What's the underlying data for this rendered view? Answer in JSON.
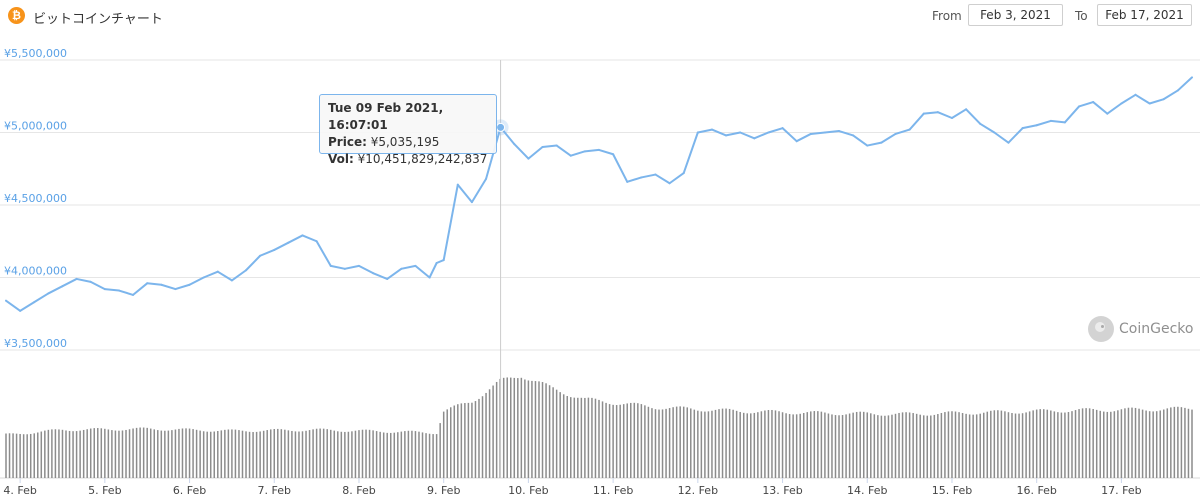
{
  "header": {
    "coin_icon_glyph": "₿",
    "coin_icon": "bitcoin-icon",
    "title": "ビットコインチャート",
    "from_label": "From",
    "from_value": "Feb 3, 2021",
    "to_label": "To",
    "to_value": "Feb 17, 2021"
  },
  "tooltip": {
    "datetime": "Tue 09 Feb 2021, 16:07:01",
    "price_label": "Price:",
    "price_value": "¥5,035,195",
    "vol_label": "Vol:",
    "vol_value": "¥10,451,829,242,837"
  },
  "watermark": {
    "icon": "coingecko-logo-icon",
    "text": "CoinGecko"
  },
  "colors": {
    "line": "#7cb5ec",
    "volume": "#8c8c8c",
    "grid": "#e6e6e6",
    "axis_label": "#5aa1e6",
    "crosshair": "#cccccc"
  },
  "chart_data": {
    "type": "line",
    "x_unit": "date",
    "xlim": [
      "2021-02-03T20:00",
      "2021-02-17T20:00"
    ],
    "ylim": [
      3500000,
      5500000
    ],
    "ytick_values": [
      3500000,
      4000000,
      4500000,
      5000000,
      5500000
    ],
    "ytick_labels": [
      "¥3,500,000",
      "¥4,000,000",
      "¥4,500,000",
      "¥5,000,000",
      "¥5,500,000"
    ],
    "xtick_values": [
      "2021-02-04",
      "2021-02-05",
      "2021-02-06",
      "2021-02-07",
      "2021-02-08",
      "2021-02-09",
      "2021-02-10",
      "2021-02-11",
      "2021-02-12",
      "2021-02-13",
      "2021-02-14",
      "2021-02-15",
      "2021-02-16",
      "2021-02-17"
    ],
    "xtick_labels": [
      "4. Feb",
      "5. Feb",
      "6. Feb",
      "7. Feb",
      "8. Feb",
      "9. Feb",
      "10. Feb",
      "11. Feb",
      "12. Feb",
      "13. Feb",
      "14. Feb",
      "15. Feb",
      "16. Feb",
      "17. Feb"
    ],
    "highlight": {
      "x": "2021-02-09T16:07",
      "y": 5035195
    },
    "price": {
      "x": [
        "2021-02-03T20:00",
        "2021-02-04T00:00",
        "2021-02-04T04:00",
        "2021-02-04T08:00",
        "2021-02-04T12:00",
        "2021-02-04T16:00",
        "2021-02-04T20:00",
        "2021-02-05T00:00",
        "2021-02-05T04:00",
        "2021-02-05T08:00",
        "2021-02-05T12:00",
        "2021-02-05T16:00",
        "2021-02-05T20:00",
        "2021-02-06T00:00",
        "2021-02-06T04:00",
        "2021-02-06T08:00",
        "2021-02-06T12:00",
        "2021-02-06T16:00",
        "2021-02-06T20:00",
        "2021-02-07T00:00",
        "2021-02-07T04:00",
        "2021-02-07T08:00",
        "2021-02-07T12:00",
        "2021-02-07T16:00",
        "2021-02-07T20:00",
        "2021-02-08T00:00",
        "2021-02-08T04:00",
        "2021-02-08T08:00",
        "2021-02-08T12:00",
        "2021-02-08T16:00",
        "2021-02-08T20:00",
        "2021-02-08T22:00",
        "2021-02-09T00:00",
        "2021-02-09T04:00",
        "2021-02-09T08:00",
        "2021-02-09T12:00",
        "2021-02-09T16:07",
        "2021-02-09T20:00",
        "2021-02-10T00:00",
        "2021-02-10T04:00",
        "2021-02-10T08:00",
        "2021-02-10T12:00",
        "2021-02-10T16:00",
        "2021-02-10T20:00",
        "2021-02-11T00:00",
        "2021-02-11T04:00",
        "2021-02-11T08:00",
        "2021-02-11T12:00",
        "2021-02-11T16:00",
        "2021-02-11T20:00",
        "2021-02-12T00:00",
        "2021-02-12T04:00",
        "2021-02-12T08:00",
        "2021-02-12T12:00",
        "2021-02-12T16:00",
        "2021-02-12T20:00",
        "2021-02-13T00:00",
        "2021-02-13T04:00",
        "2021-02-13T08:00",
        "2021-02-13T12:00",
        "2021-02-13T16:00",
        "2021-02-13T20:00",
        "2021-02-14T00:00",
        "2021-02-14T04:00",
        "2021-02-14T08:00",
        "2021-02-14T12:00",
        "2021-02-14T16:00",
        "2021-02-14T20:00",
        "2021-02-15T00:00",
        "2021-02-15T04:00",
        "2021-02-15T08:00",
        "2021-02-15T12:00",
        "2021-02-15T16:00",
        "2021-02-15T20:00",
        "2021-02-16T00:00",
        "2021-02-16T04:00",
        "2021-02-16T08:00",
        "2021-02-16T12:00",
        "2021-02-16T16:00",
        "2021-02-16T20:00",
        "2021-02-17T00:00",
        "2021-02-17T04:00",
        "2021-02-17T08:00",
        "2021-02-17T12:00",
        "2021-02-17T16:00",
        "2021-02-17T20:00"
      ],
      "y": [
        3840000,
        3770000,
        3830000,
        3890000,
        3940000,
        3990000,
        3970000,
        3920000,
        3910000,
        3880000,
        3960000,
        3950000,
        3920000,
        3950000,
        4000000,
        4040000,
        3980000,
        4050000,
        4150000,
        4190000,
        4240000,
        4290000,
        4250000,
        4080000,
        4060000,
        4080000,
        4030000,
        3990000,
        4060000,
        4080000,
        4000000,
        4100000,
        4120000,
        4640000,
        4520000,
        4680000,
        5035195,
        4920000,
        4820000,
        4900000,
        4910000,
        4840000,
        4870000,
        4880000,
        4850000,
        4660000,
        4690000,
        4710000,
        4650000,
        4720000,
        5000000,
        5020000,
        4980000,
        5000000,
        4960000,
        5000000,
        5030000,
        4940000,
        4990000,
        5000000,
        5010000,
        4980000,
        4910000,
        4930000,
        4990000,
        5020000,
        5130000,
        5140000,
        5100000,
        5160000,
        5060000,
        5000000,
        4930000,
        5030000,
        5050000,
        5080000,
        5070000,
        5180000,
        5210000,
        5130000,
        5200000,
        5260000,
        5200000,
        5230000,
        5290000,
        5380000
      ]
    },
    "volume": {
      "y_unit": "JPY",
      "x": [
        "2021-02-03T20:00",
        "2021-02-04T12:00",
        "2021-02-05T12:00",
        "2021-02-06T12:00",
        "2021-02-07T12:00",
        "2021-02-08T12:00",
        "2021-02-08T22:00",
        "2021-02-09T00:00",
        "2021-02-09T08:00",
        "2021-02-09T16:00",
        "2021-02-09T22:00",
        "2021-02-10T06:00",
        "2021-02-10T16:00",
        "2021-02-11T12:00",
        "2021-02-12T12:00",
        "2021-02-13T12:00",
        "2021-02-14T12:00",
        "2021-02-15T12:00",
        "2021-02-16T12:00",
        "2021-02-17T12:00",
        "2021-02-17T20:00"
      ],
      "y": [
        4400000000000,
        4900000000000,
        5000000000000,
        4800000000000,
        4900000000000,
        4700000000000,
        4600000000000,
        6800000000000,
        7800000000000,
        9800000000000,
        10500000000000,
        9200000000000,
        8000000000000,
        7200000000000,
        6800000000000,
        6600000000000,
        6500000000000,
        6700000000000,
        6900000000000,
        7000000000000,
        7100000000000
      ]
    }
  }
}
